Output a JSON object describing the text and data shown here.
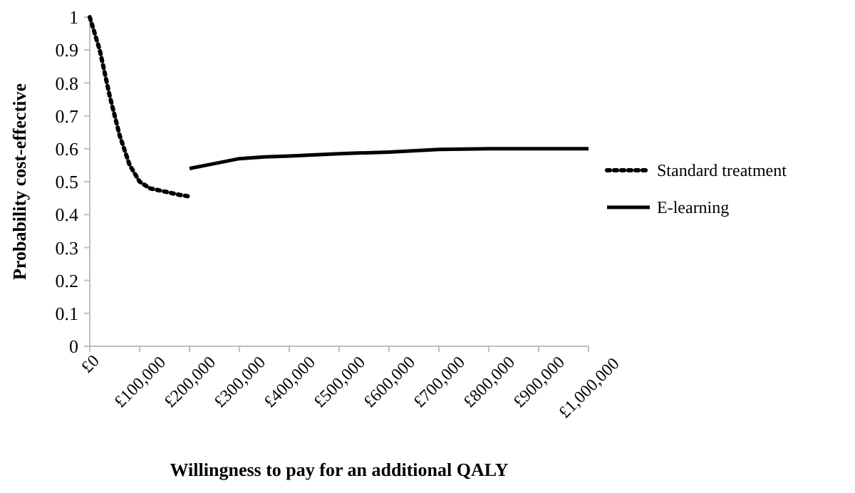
{
  "chart_data": {
    "type": "line",
    "xlabel": "Willingness to pay for an additional QALY",
    "ylabel": "Probability cost-effective",
    "xlim": [
      0,
      1000000
    ],
    "xticks": [
      {
        "value": 0,
        "label": "£0"
      },
      {
        "value": 100000,
        "label": "£100,000"
      },
      {
        "value": 200000,
        "label": "£200,000"
      },
      {
        "value": 300000,
        "label": "£300,000"
      },
      {
        "value": 400000,
        "label": "£400,000"
      },
      {
        "value": 500000,
        "label": "£500,000"
      },
      {
        "value": 600000,
        "label": "£600,000"
      },
      {
        "value": 700000,
        "label": "£700,000"
      },
      {
        "value": 800000,
        "label": "£800,000"
      },
      {
        "value": 900000,
        "label": "£900,000"
      },
      {
        "value": 1000000,
        "label": "£1,000,000"
      }
    ],
    "ylim": [
      0,
      1
    ],
    "yticks": [
      0,
      0.1,
      0.2,
      0.3,
      0.4,
      0.5,
      0.6,
      0.7,
      0.8,
      0.9,
      1
    ],
    "grid": false,
    "legend": "right",
    "series": [
      {
        "name": "Standard treatment",
        "color": "#000000",
        "line_style": "dotted",
        "x": [
          0,
          20000,
          40000,
          60000,
          80000,
          100000,
          120000,
          150000,
          180000,
          200000
        ],
        "values": [
          1.0,
          0.9,
          0.76,
          0.64,
          0.55,
          0.5,
          0.48,
          0.47,
          0.46,
          0.455
        ]
      },
      {
        "name": "E-learning",
        "color": "#000000",
        "line_style": "solid",
        "x": [
          200000,
          250000,
          300000,
          350000,
          400000,
          500000,
          600000,
          700000,
          800000,
          900000,
          1000000
        ],
        "values": [
          0.54,
          0.555,
          0.57,
          0.575,
          0.578,
          0.585,
          0.59,
          0.598,
          0.6,
          0.6,
          0.6
        ]
      }
    ]
  }
}
